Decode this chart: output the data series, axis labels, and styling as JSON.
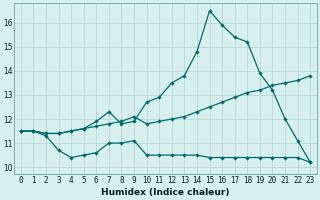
{
  "xlabel": "Humidex (Indice chaleur)",
  "bg_color": "#d8f0ed",
  "line_color": "#006b6b",
  "grid_color": "#b8d8d4",
  "xlim": [
    -0.5,
    23.5
  ],
  "ylim": [
    9.7,
    16.8
  ],
  "yticks": [
    10,
    11,
    12,
    13,
    14,
    15,
    16
  ],
  "x": [
    0,
    1,
    2,
    3,
    4,
    5,
    6,
    7,
    8,
    9,
    10,
    11,
    12,
    13,
    14,
    15,
    16,
    17,
    18,
    19,
    20,
    21,
    22,
    23
  ],
  "line1": [
    11.5,
    11.5,
    11.3,
    10.7,
    10.4,
    10.5,
    10.6,
    11.0,
    11.0,
    11.1,
    10.5,
    10.5,
    10.5,
    10.5,
    10.5,
    10.4,
    10.4,
    10.4,
    10.4,
    10.4,
    10.4,
    10.4,
    10.4,
    10.2
  ],
  "line2": [
    11.5,
    11.5,
    11.4,
    11.4,
    11.5,
    11.6,
    11.7,
    11.8,
    11.9,
    12.1,
    11.8,
    11.9,
    12.0,
    12.1,
    12.3,
    12.5,
    12.7,
    12.9,
    13.1,
    13.2,
    13.4,
    13.5,
    13.6,
    13.8
  ],
  "line3": [
    11.5,
    11.5,
    11.4,
    11.4,
    11.5,
    11.6,
    11.9,
    12.3,
    11.8,
    11.9,
    12.7,
    12.9,
    13.5,
    13.8,
    14.8,
    16.5,
    15.9,
    15.4,
    15.2,
    13.9,
    13.2,
    12.0,
    11.1,
    10.2
  ],
  "tick_fontsize": 5.5,
  "xlabel_fontsize": 6.5,
  "marker_size": 2.2,
  "line_width": 0.9
}
